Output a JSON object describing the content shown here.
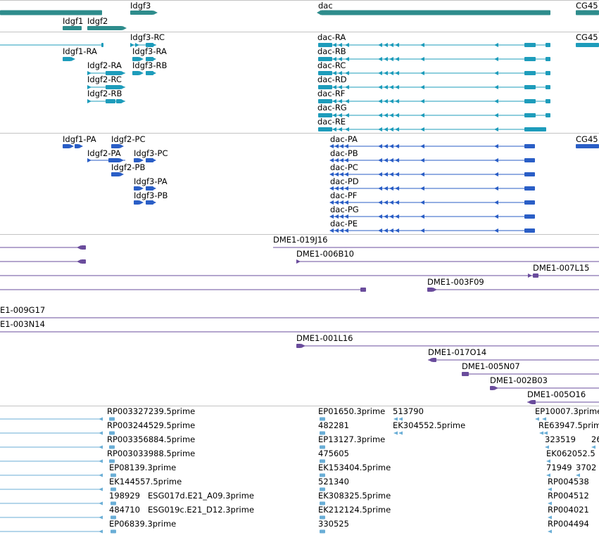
{
  "colors": {
    "gene": "#2e8c8c",
    "transcript": "#1d9cbb",
    "protein": "#2a5ec6",
    "clone": "#6a4c9c",
    "est": "#6aaed6",
    "divider": "#c4c4c4"
  },
  "tracks": {
    "genes": {
      "labels": [
        "Idgf3",
        "dac",
        "CG45",
        "Idgf1",
        "Idgf2"
      ]
    },
    "transcripts": {
      "labels": [
        "Idgf3-RC",
        "dac-RA",
        "CG45",
        "Idgf1-RA",
        "Idgf3-RA",
        "dac-RB",
        "Idgf2-RA",
        "Idgf3-RB",
        "dac-RC",
        "Idgf2-RC",
        "dac-RD",
        "Idgf2-RB",
        "dac-RF",
        "dac-RG",
        "dac-RE"
      ]
    },
    "proteins": {
      "labels": [
        "Idgf1-PA",
        "Idgf2-PC",
        "dac-PA",
        "CG45",
        "Idgf2-PA",
        "Idgf3-PC",
        "dac-PB",
        "Idgf2-PB",
        "dac-PC",
        "Idgf3-PA",
        "dac-PD",
        "Idgf3-PB",
        "dac-PF",
        "dac-PG",
        "dac-PE"
      ]
    },
    "clones": {
      "labels": [
        "DME1-019J16",
        "DME1-006B10",
        "DME1-007L15",
        "DME1-003F09",
        "E1-009G17",
        "E1-003N14",
        "DME1-001L16",
        "DME1-017O14",
        "DME1-005N07",
        "DME1-002B03",
        "DME1-005O16"
      ]
    },
    "ests": {
      "labels": [
        "RP003327239.5prime",
        "EP01650.3prime",
        "513790",
        "EP10007.3prime",
        "RP003244529.5prime",
        "482281",
        "EK304552.5prime",
        "RE63947.5prime",
        "RP003356884.5prime",
        "EP13127.3prime",
        "323519",
        "26",
        "RP003033988.5prime",
        "475605",
        "EK062052.5",
        "EP08139.3prime",
        "EK153404.5prime",
        "71949",
        "3702",
        "EK144557.5prime",
        "521340",
        "RP004538",
        "198929",
        "ESG017d.E21_A09.3prime",
        "EK308325.5prime",
        "RP004512",
        "484710",
        "ESG019c.E21_D12.3prime",
        "EK212124.5prime",
        "RP004021",
        "EP06839.3prime",
        "330525",
        "RP004494"
      ]
    }
  }
}
